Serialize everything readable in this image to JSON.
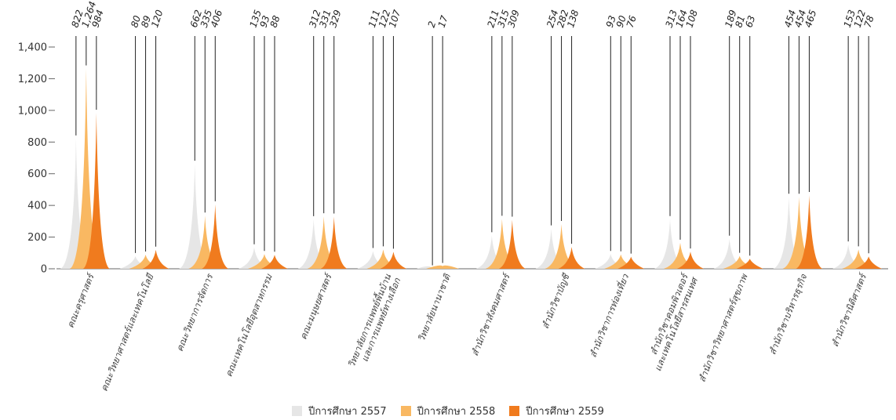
{
  "chart_data": {
    "type": "area",
    "ylim": [
      0,
      1400
    ],
    "yticks": [
      0,
      200,
      400,
      600,
      800,
      1000,
      1200,
      1400
    ],
    "ytick_labels": [
      "0",
      "200",
      "400",
      "600",
      "800",
      "1,000",
      "1,200",
      "1,400"
    ],
    "categories": [
      [
        "คณะครุศาสตร์"
      ],
      [
        "คณะวิทยาศาสตร์และเทคโนโลยี"
      ],
      [
        "คณะวิทยาการจัดการ"
      ],
      [
        "คณะเทคโนโลยีอุตสาหกรรม"
      ],
      [
        "คณะมนุษยศาสตร์"
      ],
      [
        "วิทยาลัยการแพทย์พื้นบ้าน",
        "และการแพทย์ทางเลือก"
      ],
      [
        "วิทยาลัยนานาชาติ"
      ],
      [
        "สำนักวิชาสังคมศาสตร์"
      ],
      [
        "สำนักวิชาบัญชี"
      ],
      [
        "สำนักวิชาการท่องเที่ยว"
      ],
      [
        "สำนักวิชาคอมพิวเตอร์",
        "และเทคโนโลยีสารสนเทศ"
      ],
      [
        "สำนักวิชาวิทยาศาสตร์สุขภาพ"
      ],
      [
        "สำนักวิชาบริหารธุรกิจ"
      ],
      [
        "สำนักวิชานิติศาสตร์"
      ]
    ],
    "series": [
      {
        "name": "ปีการศึกษา 2557",
        "color": "#e6e6e6",
        "values": [
          822,
          80,
          662,
          135,
          312,
          111,
          2,
          211,
          254,
          93,
          313,
          189,
          454,
          153
        ],
        "labels": [
          "822",
          "80",
          "662",
          "135",
          "312",
          "111",
          "2",
          "211",
          "254",
          "93",
          "313",
          "189",
          "454",
          "153"
        ]
      },
      {
        "name": "ปีการศึกษา 2558",
        "color": "#f9b862",
        "values": [
          1264,
          89,
          335,
          93,
          331,
          122,
          17,
          315,
          282,
          90,
          164,
          81,
          454,
          122
        ],
        "labels": [
          "1,264",
          "89",
          "335",
          "93",
          "331",
          "122",
          "17",
          "315",
          "282",
          "90",
          "164",
          "81",
          "454",
          "122"
        ]
      },
      {
        "name": "ปีการศึกษา 2559",
        "color": "#f07b1e",
        "values": [
          984,
          120,
          406,
          88,
          329,
          107,
          null,
          309,
          138,
          76,
          108,
          63,
          465,
          78
        ],
        "labels": [
          "984",
          "120",
          "406",
          "88",
          "329",
          "107",
          "",
          "309",
          "138",
          "76",
          "108",
          "63",
          "465",
          "78"
        ]
      }
    ],
    "legend_position": "bottom",
    "grid": false
  }
}
